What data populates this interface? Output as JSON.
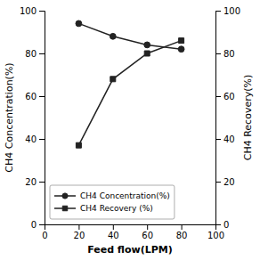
{
  "chart_data": {
    "type": "line",
    "x": [
      20,
      40,
      60,
      80
    ],
    "xlabel": "Feed flow(LPM)",
    "ylabel": "CH4 Concentration(%)",
    "y2label": "CH4 Recovery(%)",
    "xlim": [
      0,
      100
    ],
    "xticks": [
      0,
      20,
      40,
      60,
      80,
      100
    ],
    "ylim": [
      0,
      100
    ],
    "yticks": [
      0,
      20,
      40,
      60,
      80,
      100
    ],
    "y2lim": [
      0,
      100
    ],
    "y2ticks": [
      0,
      20,
      40,
      60,
      80,
      100
    ],
    "grid": false,
    "legend": "lower left",
    "series": [
      {
        "name": "CH4 Concentration(%)",
        "color": "#222222",
        "marker": "circle",
        "values": [
          94,
          88,
          84,
          82
        ]
      },
      {
        "name": "CH4 Recovery (%)",
        "color": "#222222",
        "marker": "square",
        "axis": "y2",
        "values": [
          37,
          68,
          80,
          86
        ]
      }
    ]
  }
}
